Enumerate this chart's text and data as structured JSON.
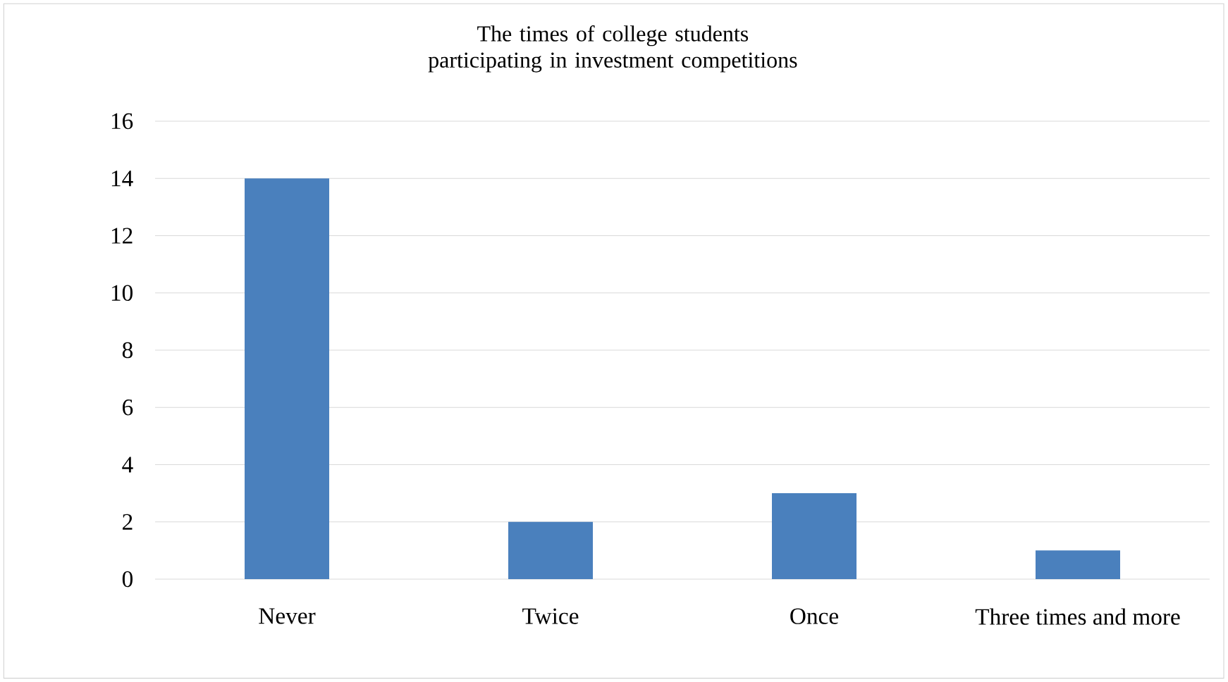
{
  "chart_data": {
    "type": "bar",
    "title": "The times of college students participating in investment competitions",
    "categories": [
      "Never",
      "Twice",
      "Once",
      "Three times and more"
    ],
    "values": [
      14,
      2,
      3,
      1
    ],
    "color": "#4a80bd",
    "ylim": [
      0,
      16
    ],
    "yticks": [
      0,
      2,
      4,
      6,
      8,
      10,
      12,
      14,
      16
    ],
    "grid": "y"
  }
}
